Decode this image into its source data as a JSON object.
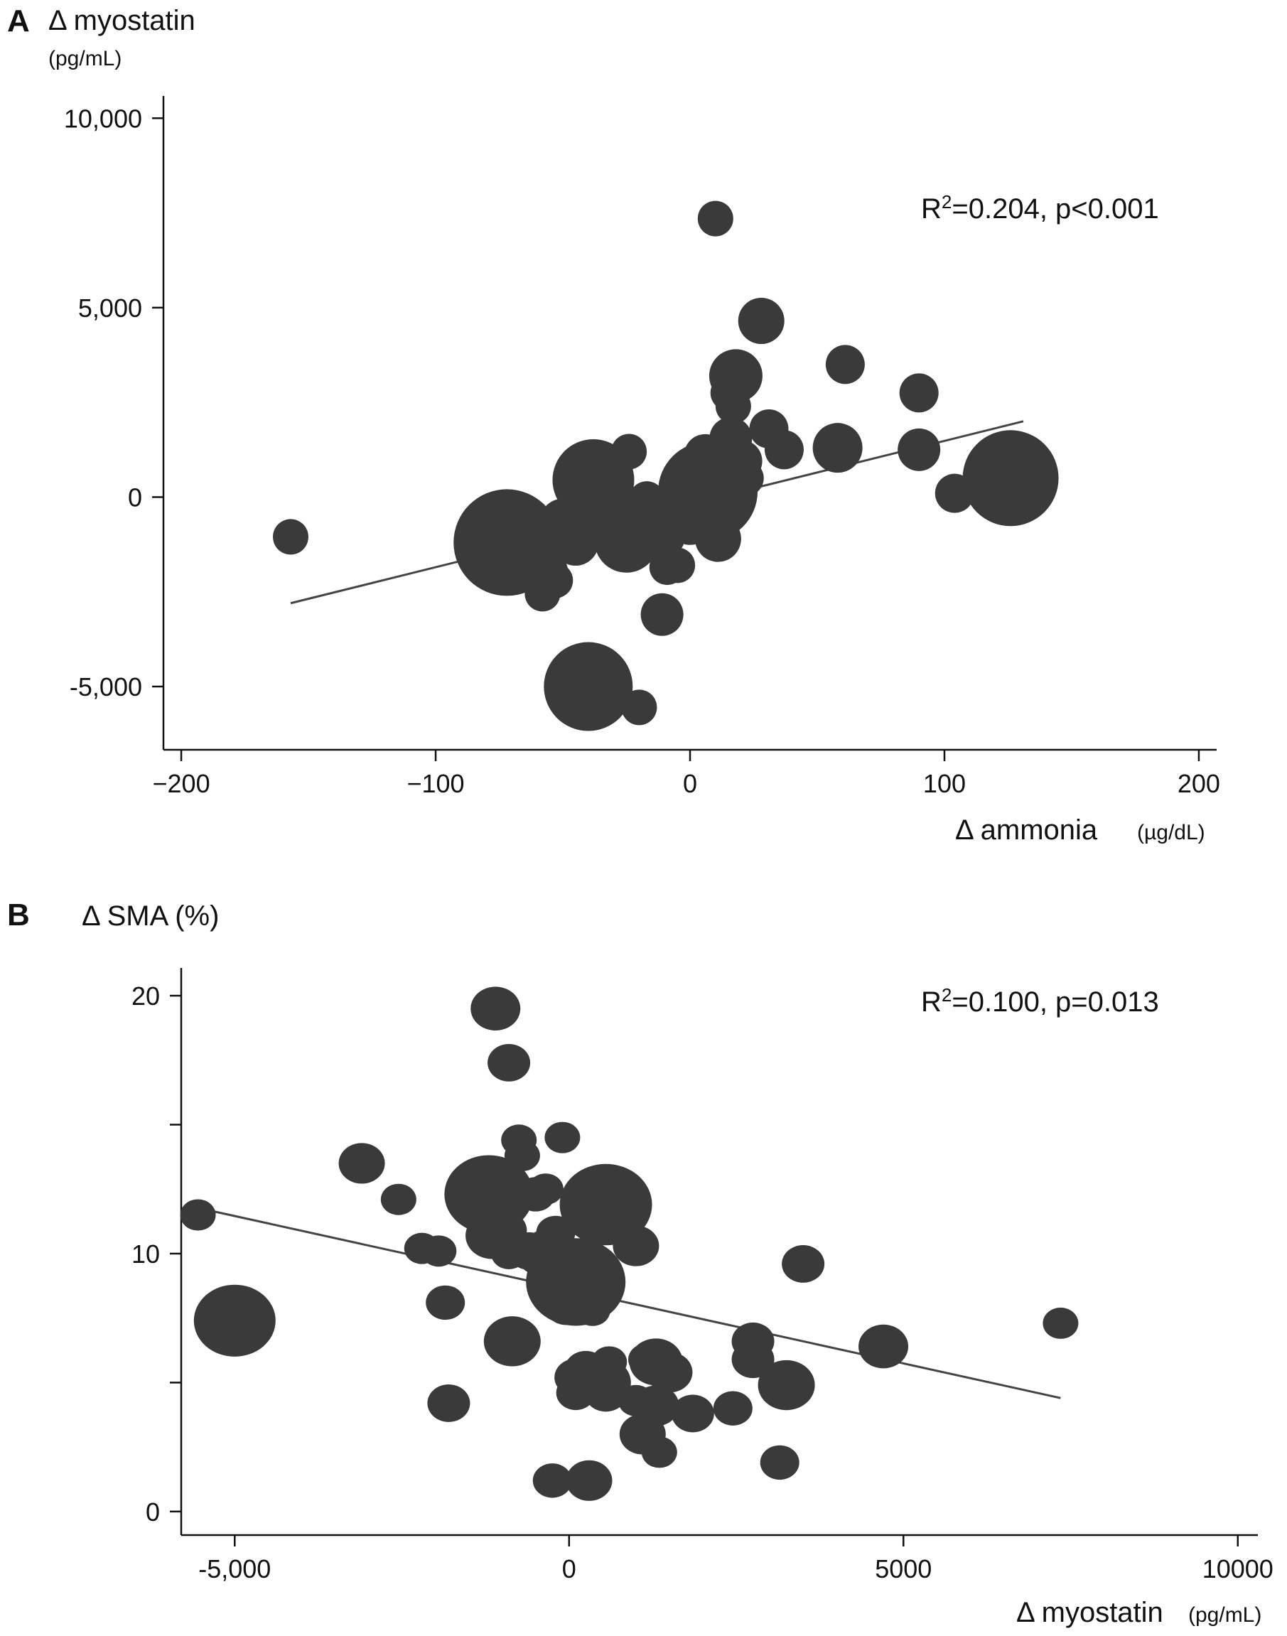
{
  "chart_data": [
    {
      "type": "scatter",
      "panel": "A",
      "ylabel": "Δ myostatin",
      "yunit": "(pg/mL)",
      "xlabel": "Δ ammonia",
      "xunit": "(µg/dL)",
      "annotation_main": "R",
      "annotation_sup": "2",
      "annotation_rest": "=0.204, p<0.001",
      "xlim": [
        -207,
        207
      ],
      "ylim": [
        -6200,
        10400
      ],
      "xticks": [
        -200,
        -100,
        0,
        100,
        200
      ],
      "xtick_labels": [
        "−200",
        "−100",
        "0",
        "100",
        "200"
      ],
      "yticks": [
        -5000,
        0,
        5000,
        10000
      ],
      "ytick_labels": [
        "-5,000",
        "0",
        "5,000",
        "10,000"
      ],
      "fit_line": [
        [
          -157,
          -2800
        ],
        [
          131,
          2000
        ]
      ],
      "points": [
        {
          "x": -157,
          "y": -1050,
          "size": 1
        },
        {
          "x": -72,
          "y": -1200,
          "size": 3
        },
        {
          "x": -67,
          "y": -350,
          "size": 1
        },
        {
          "x": -58,
          "y": -2550,
          "size": 1
        },
        {
          "x": -55,
          "y": -1950,
          "size": 1
        },
        {
          "x": -53,
          "y": -2200,
          "size": 1
        },
        {
          "x": -50,
          "y": -650,
          "size": 1.3
        },
        {
          "x": -45,
          "y": -1200,
          "size": 1.3
        },
        {
          "x": -40,
          "y": -5000,
          "size": 2.5
        },
        {
          "x": -38,
          "y": 450,
          "size": 2.3
        },
        {
          "x": -35,
          "y": -600,
          "size": 1.5
        },
        {
          "x": -32,
          "y": -800,
          "size": 1.3
        },
        {
          "x": -28,
          "y": -450,
          "size": 1
        },
        {
          "x": -25,
          "y": -1150,
          "size": 1.8
        },
        {
          "x": -24,
          "y": 1200,
          "size": 1
        },
        {
          "x": -20,
          "y": -5550,
          "size": 1
        },
        {
          "x": -17,
          "y": -50,
          "size": 1
        },
        {
          "x": -15,
          "y": -900,
          "size": 1.3
        },
        {
          "x": -12,
          "y": -950,
          "size": 1.5
        },
        {
          "x": -11,
          "y": -3100,
          "size": 1.2
        },
        {
          "x": -9,
          "y": -1850,
          "size": 1
        },
        {
          "x": -5,
          "y": -1800,
          "size": 1
        },
        {
          "x": -4,
          "y": -350,
          "size": 1
        },
        {
          "x": 0,
          "y": -700,
          "size": 1.2
        },
        {
          "x": 6,
          "y": 1100,
          "size": 1.2
        },
        {
          "x": 7,
          "y": 150,
          "size": 2.8
        },
        {
          "x": 10,
          "y": 7350,
          "size": 1
        },
        {
          "x": 11,
          "y": -1100,
          "size": 1.3
        },
        {
          "x": 12,
          "y": -1000,
          "size": 1
        },
        {
          "x": 14,
          "y": 550,
          "size": 1.2
        },
        {
          "x": 15,
          "y": 2750,
          "size": 1
        },
        {
          "x": 16,
          "y": 1550,
          "size": 1.2
        },
        {
          "x": 17,
          "y": 2400,
          "size": 1
        },
        {
          "x": 18,
          "y": 3200,
          "size": 1.5
        },
        {
          "x": 19,
          "y": 3050,
          "size": 1
        },
        {
          "x": 20,
          "y": 950,
          "size": 1.2
        },
        {
          "x": 22,
          "y": 500,
          "size": 1
        },
        {
          "x": 28,
          "y": 4650,
          "size": 1.3
        },
        {
          "x": 31,
          "y": 1800,
          "size": 1.1
        },
        {
          "x": 37,
          "y": 1250,
          "size": 1.1
        },
        {
          "x": 58,
          "y": 1300,
          "size": 1.4
        },
        {
          "x": 61,
          "y": 3500,
          "size": 1.1
        },
        {
          "x": 90,
          "y": 2750,
          "size": 1.1
        },
        {
          "x": 90,
          "y": 1250,
          "size": 1.2
        },
        {
          "x": 104,
          "y": 100,
          "size": 1.1
        },
        {
          "x": 126,
          "y": 500,
          "size": 2.7
        }
      ]
    },
    {
      "type": "scatter",
      "panel": "B",
      "ylabel": "Δ SMA (%)",
      "xlabel": "Δ myostatin",
      "xunit": "(pg/mL)",
      "annotation_main": "R",
      "annotation_sup": "2",
      "annotation_rest": "=0.100, p=0.013",
      "xlim": [
        -5800,
        10300
      ],
      "ylim": [
        -0.5,
        20.8
      ],
      "xticks": [
        -5000,
        0,
        5000,
        10000
      ],
      "xtick_labels": [
        "-5,000",
        "0",
        "5000",
        "10000"
      ],
      "yticks": [
        0,
        5,
        10,
        15,
        20
      ],
      "ytick_labels": [
        "0",
        "",
        "10",
        "",
        "20"
      ],
      "fit_line": [
        [
          -5600,
          11.8
        ],
        [
          7350,
          4.4
        ]
      ],
      "points": [
        {
          "x": -5550,
          "y": 11.5,
          "size": 1
        },
        {
          "x": -5000,
          "y": 7.4,
          "size": 2.3
        },
        {
          "x": -3100,
          "y": 13.5,
          "size": 1.3
        },
        {
          "x": -2550,
          "y": 12.1,
          "size": 1
        },
        {
          "x": -2200,
          "y": 10.2,
          "size": 1
        },
        {
          "x": -1950,
          "y": 10.1,
          "size": 1
        },
        {
          "x": -1850,
          "y": 8.1,
          "size": 1.1
        },
        {
          "x": -1800,
          "y": 4.2,
          "size": 1.2
        },
        {
          "x": -1200,
          "y": 12.3,
          "size": 2.5
        },
        {
          "x": -1100,
          "y": 19.5,
          "size": 1.4
        },
        {
          "x": -1150,
          "y": 10.7,
          "size": 1.5
        },
        {
          "x": -950,
          "y": 10.9,
          "size": 1.2
        },
        {
          "x": -900,
          "y": 17.4,
          "size": 1.2
        },
        {
          "x": -850,
          "y": 6.6,
          "size": 1.6
        },
        {
          "x": -900,
          "y": 10.0,
          "size": 1
        },
        {
          "x": -750,
          "y": 14.4,
          "size": 1
        },
        {
          "x": -700,
          "y": 13.8,
          "size": 1
        },
        {
          "x": -600,
          "y": 10.1,
          "size": 1.2
        },
        {
          "x": -500,
          "y": 12.3,
          "size": 1.1
        },
        {
          "x": -450,
          "y": 9.9,
          "size": 1.2
        },
        {
          "x": -350,
          "y": 12.5,
          "size": 1
        },
        {
          "x": -350,
          "y": 10.2,
          "size": 1.2
        },
        {
          "x": -250,
          "y": 1.2,
          "size": 1.1
        },
        {
          "x": -200,
          "y": 10.8,
          "size": 1.1
        },
        {
          "x": -100,
          "y": 14.5,
          "size": 1
        },
        {
          "x": -50,
          "y": 7.9,
          "size": 1.1
        },
        {
          "x": 100,
          "y": 8.9,
          "size": 2.8
        },
        {
          "x": 100,
          "y": 5.2,
          "size": 1.2
        },
        {
          "x": 100,
          "y": 4.6,
          "size": 1.1
        },
        {
          "x": 250,
          "y": 5.5,
          "size": 1.2
        },
        {
          "x": 300,
          "y": 1.2,
          "size": 1.3
        },
        {
          "x": 350,
          "y": 7.8,
          "size": 1
        },
        {
          "x": 500,
          "y": 5.0,
          "size": 1.6
        },
        {
          "x": 550,
          "y": 11.9,
          "size": 2.6
        },
        {
          "x": 550,
          "y": 4.6,
          "size": 1.2
        },
        {
          "x": 600,
          "y": 5.8,
          "size": 1
        },
        {
          "x": 1000,
          "y": 10.3,
          "size": 1.3
        },
        {
          "x": 1000,
          "y": 4.3,
          "size": 1
        },
        {
          "x": 1100,
          "y": 3.0,
          "size": 1.3
        },
        {
          "x": 1150,
          "y": 5.9,
          "size": 1
        },
        {
          "x": 1300,
          "y": 5.8,
          "size": 1.5
        },
        {
          "x": 1300,
          "y": 4.1,
          "size": 1.3
        },
        {
          "x": 1350,
          "y": 2.3,
          "size": 1
        },
        {
          "x": 1500,
          "y": 5.4,
          "size": 1.3
        },
        {
          "x": 1850,
          "y": 3.8,
          "size": 1.2
        },
        {
          "x": 2450,
          "y": 4.0,
          "size": 1.1
        },
        {
          "x": 2750,
          "y": 6.6,
          "size": 1.2
        },
        {
          "x": 2750,
          "y": 5.9,
          "size": 1.2
        },
        {
          "x": 3150,
          "y": 1.9,
          "size": 1.1
        },
        {
          "x": 3250,
          "y": 4.9,
          "size": 1.6
        },
        {
          "x": 3500,
          "y": 9.6,
          "size": 1.2
        },
        {
          "x": 4700,
          "y": 6.4,
          "size": 1.4
        },
        {
          "x": 7350,
          "y": 7.3,
          "size": 1
        }
      ]
    }
  ]
}
